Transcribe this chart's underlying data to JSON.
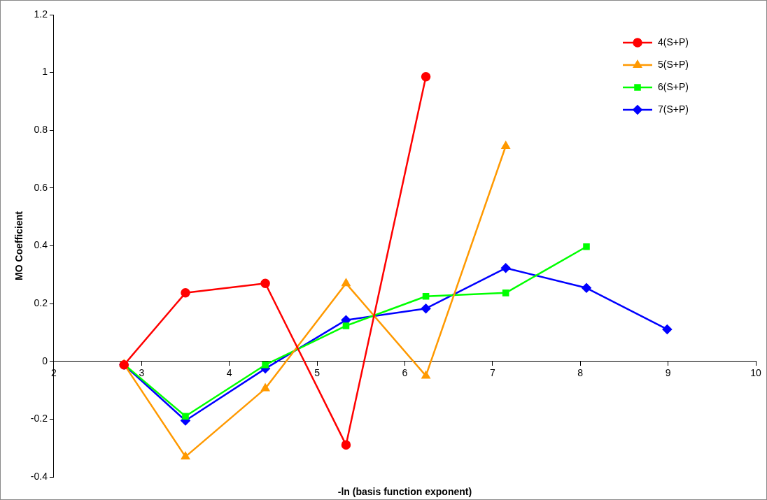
{
  "chart_data": {
    "type": "line",
    "xlabel": "-ln (basis function exponent)",
    "ylabel": "MO Coefficient",
    "xlim": [
      2,
      10
    ],
    "xticks": [
      2,
      3,
      4,
      5,
      6,
      7,
      8,
      9,
      10
    ],
    "ylim": [
      -0.4,
      1.2
    ],
    "yticks": [
      -0.4,
      -0.2,
      0,
      0.2,
      0.4,
      0.6,
      0.8,
      1,
      1.2
    ],
    "grid": false,
    "legend": "top right",
    "line_style": "solid",
    "series": [
      {
        "name": "4(S+P)",
        "color": "#ff0000",
        "marker": "circle",
        "x": [
          2.8,
          3.5,
          4.41,
          5.33,
          6.24
        ],
        "values": [
          -0.012,
          0.237,
          0.27,
          -0.289,
          0.985
        ]
      },
      {
        "name": "5(S+P)",
        "color": "#ff9900",
        "marker": "triangle",
        "x": [
          2.8,
          3.5,
          4.41,
          5.33,
          6.24,
          7.15
        ],
        "values": [
          -0.01,
          -0.33,
          -0.094,
          0.27,
          -0.05,
          0.745
        ]
      },
      {
        "name": "6(S+P)",
        "color": "#00ff00",
        "marker": "square",
        "x": [
          2.8,
          3.5,
          4.41,
          5.33,
          6.24,
          7.15,
          8.07
        ],
        "values": [
          -0.01,
          -0.19,
          -0.012,
          0.123,
          0.225,
          0.237,
          0.397
        ]
      },
      {
        "name": "7(S+P)",
        "color": "#0000ff",
        "marker": "diamond",
        "x": [
          2.8,
          3.5,
          4.41,
          5.33,
          6.24,
          7.15,
          8.07,
          8.99
        ],
        "values": [
          -0.012,
          -0.205,
          -0.025,
          0.143,
          0.183,
          0.323,
          0.254,
          0.111
        ]
      }
    ]
  }
}
